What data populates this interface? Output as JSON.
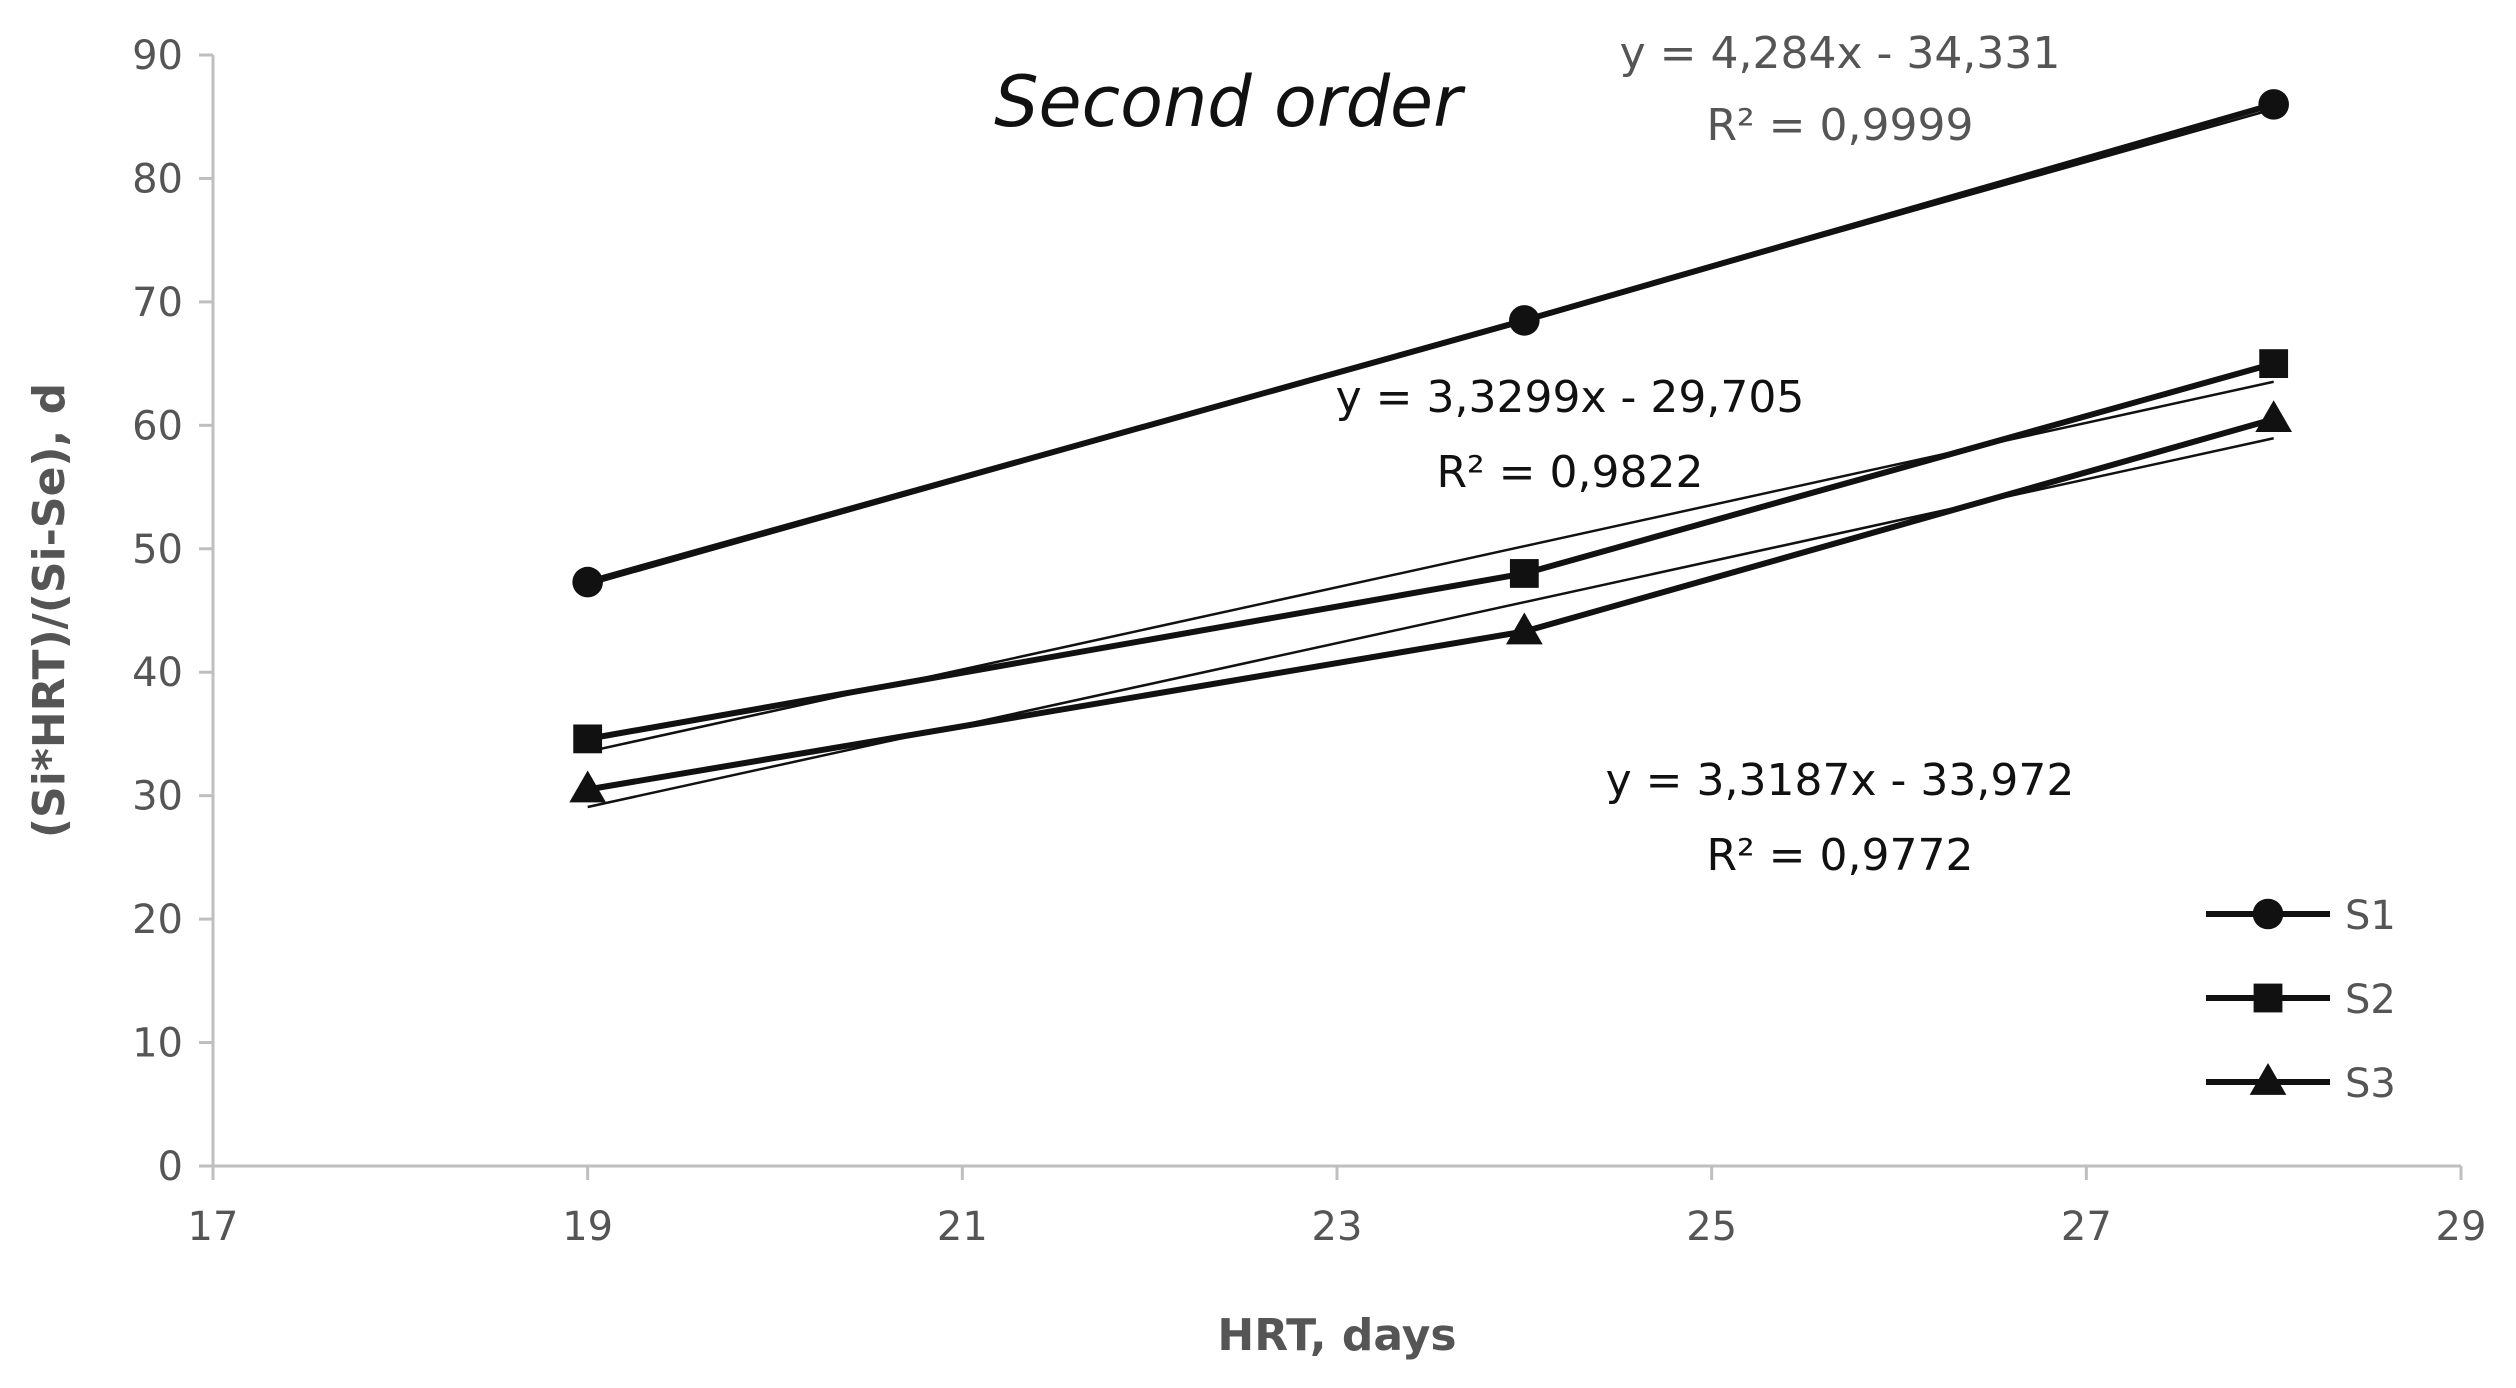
{
  "chart_data": {
    "type": "line",
    "title": "Second order",
    "xlabel": "HRT, days",
    "ylabel": "(Si*HRT)/(Si-Se), d",
    "xlim": [
      17,
      29
    ],
    "ylim": [
      0,
      90
    ],
    "xticks": [
      17,
      19,
      21,
      23,
      25,
      27,
      29
    ],
    "yticks": [
      0,
      10,
      20,
      30,
      40,
      50,
      60,
      70,
      80,
      90
    ],
    "grid": false,
    "legend_position": "bottom-right",
    "series": [
      {
        "name": "S1",
        "marker": "circle",
        "x": [
          19,
          24,
          28
        ],
        "y": [
          47.3,
          68.5,
          86.0
        ]
      },
      {
        "name": "S2",
        "marker": "square",
        "x": [
          19,
          24,
          28
        ],
        "y": [
          34.6,
          48.0,
          65.0
        ]
      },
      {
        "name": "S3",
        "marker": "triangle",
        "x": [
          19,
          24,
          28
        ],
        "y": [
          30.5,
          43.3,
          60.5
        ]
      }
    ],
    "trendlines": [
      {
        "series": "S1",
        "slope": 4.284,
        "intercept": -34.331,
        "equation": "y = 4,284x - 34,331",
        "r2": "R² = 0,9999"
      },
      {
        "series": "S2",
        "slope": 3.3299,
        "intercept": -29.705,
        "equation": "y = 3,3299x - 29,705",
        "r2": "R² = 0,9822"
      },
      {
        "series": "S3",
        "slope": 3.3187,
        "intercept": -33.972,
        "equation": "y = 3,3187x - 33,972",
        "r2": "R² = 0,9772"
      }
    ],
    "colors": {
      "line": "#111111",
      "axis": "#bfbfbf",
      "text": "#555555"
    }
  }
}
